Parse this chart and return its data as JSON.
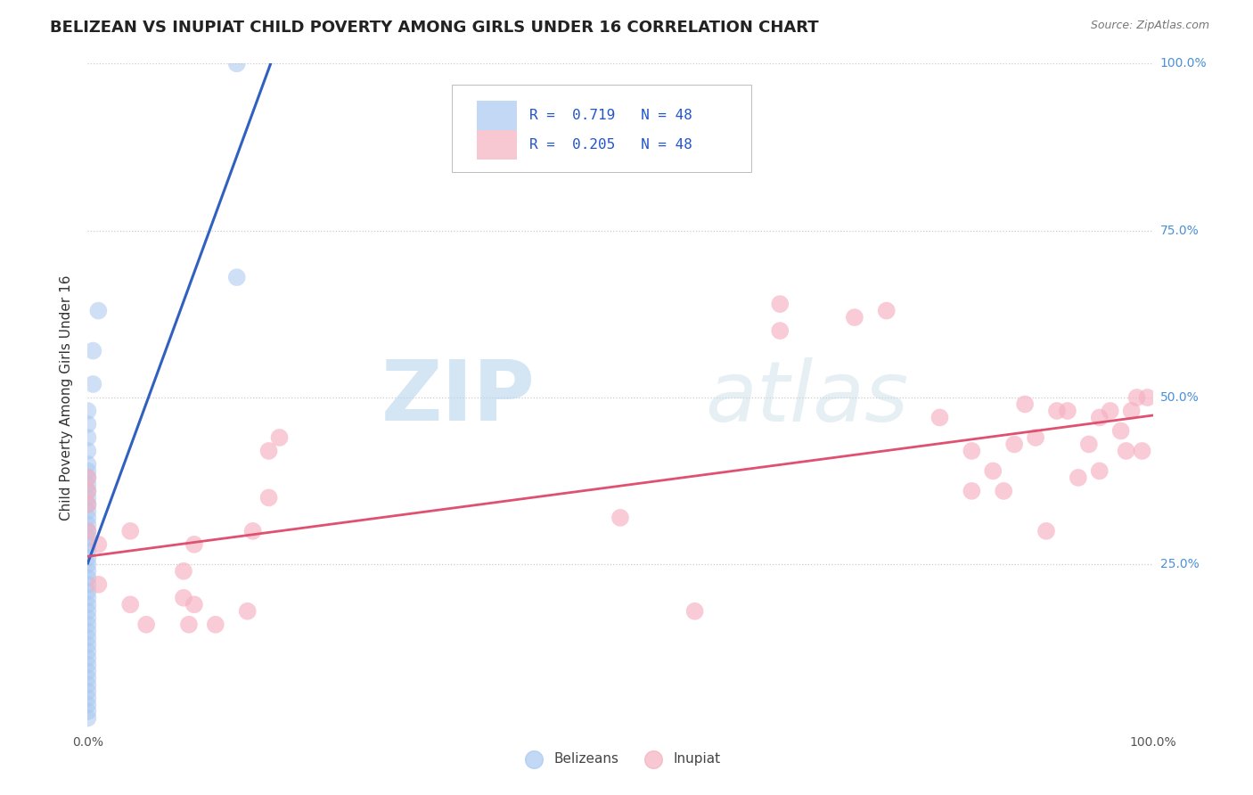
{
  "title": "BELIZEAN VS INUPIAT CHILD POVERTY AMONG GIRLS UNDER 16 CORRELATION CHART",
  "source": "Source: ZipAtlas.com",
  "ylabel": "Child Poverty Among Girls Under 16",
  "watermark_zip": "ZIP",
  "watermark_atlas": "atlas",
  "belizean_R": 0.719,
  "belizean_N": 48,
  "inupiat_R": 0.205,
  "inupiat_N": 48,
  "belizean_color": "#a8c8f0",
  "inupiat_color": "#f5b0c0",
  "belizean_line_color": "#3060c0",
  "inupiat_line_color": "#e05070",
  "background_color": "#ffffff",
  "grid_color": "#cccccc",
  "xlim": [
    0,
    1
  ],
  "ylim": [
    0,
    1
  ],
  "belizean_x": [
    0.0,
    0.0,
    0.0,
    0.0,
    0.0,
    0.0,
    0.0,
    0.0,
    0.0,
    0.0,
    0.0,
    0.0,
    0.0,
    0.0,
    0.0,
    0.0,
    0.0,
    0.0,
    0.0,
    0.0,
    0.0,
    0.0,
    0.0,
    0.0,
    0.0,
    0.0,
    0.0,
    0.0,
    0.0,
    0.0,
    0.0,
    0.0,
    0.0,
    0.0,
    0.0,
    0.0,
    0.0,
    0.0,
    0.0,
    0.0,
    0.0,
    0.0,
    0.0,
    0.005,
    0.005,
    0.01,
    0.14,
    0.14
  ],
  "belizean_y": [
    0.02,
    0.03,
    0.04,
    0.05,
    0.06,
    0.07,
    0.08,
    0.09,
    0.1,
    0.11,
    0.12,
    0.13,
    0.14,
    0.15,
    0.16,
    0.17,
    0.18,
    0.19,
    0.2,
    0.21,
    0.22,
    0.23,
    0.24,
    0.25,
    0.26,
    0.27,
    0.28,
    0.29,
    0.3,
    0.31,
    0.32,
    0.33,
    0.34,
    0.35,
    0.36,
    0.37,
    0.38,
    0.39,
    0.4,
    0.42,
    0.44,
    0.46,
    0.48,
    0.52,
    0.57,
    0.63,
    0.68,
    1.0
  ],
  "inupiat_x": [
    0.0,
    0.0,
    0.0,
    0.0,
    0.01,
    0.01,
    0.04,
    0.04,
    0.055,
    0.09,
    0.09,
    0.095,
    0.1,
    0.1,
    0.12,
    0.15,
    0.155,
    0.17,
    0.17,
    0.18,
    0.5,
    0.57,
    0.65,
    0.65,
    0.72,
    0.75,
    0.8,
    0.83,
    0.83,
    0.85,
    0.86,
    0.87,
    0.88,
    0.89,
    0.9,
    0.91,
    0.92,
    0.93,
    0.94,
    0.95,
    0.95,
    0.96,
    0.97,
    0.975,
    0.98,
    0.985,
    0.99,
    0.995
  ],
  "inupiat_y": [
    0.3,
    0.34,
    0.36,
    0.38,
    0.28,
    0.22,
    0.3,
    0.19,
    0.16,
    0.2,
    0.24,
    0.16,
    0.28,
    0.19,
    0.16,
    0.18,
    0.3,
    0.35,
    0.42,
    0.44,
    0.32,
    0.18,
    0.6,
    0.64,
    0.62,
    0.63,
    0.47,
    0.42,
    0.36,
    0.39,
    0.36,
    0.43,
    0.49,
    0.44,
    0.3,
    0.48,
    0.48,
    0.38,
    0.43,
    0.47,
    0.39,
    0.48,
    0.45,
    0.42,
    0.48,
    0.5,
    0.42,
    0.5
  ]
}
